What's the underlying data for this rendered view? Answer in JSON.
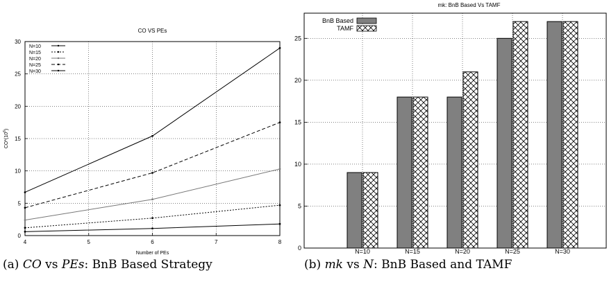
{
  "captions": {
    "a": {
      "tag": "(a)",
      "part1": "CO",
      "mid1": "vs",
      "part2": "PEs",
      "rest": ": BnB Based Strategy"
    },
    "b": {
      "tag": "(b)",
      "part1": "mk",
      "mid1": "vs",
      "part2": "N",
      "rest": ": BnB Based and TAMF"
    }
  },
  "chart_data": [
    {
      "type": "line",
      "title": "CO VS PEs",
      "xlabel": "Number of PEs",
      "ylabel": "CO*(10^6)",
      "ylabel_display": "CO*(10",
      "ylabel_exp": "6",
      "ylabel_close": ")",
      "x": [
        4,
        6,
        8
      ],
      "xlim": [
        4,
        8
      ],
      "ylim": [
        0,
        30
      ],
      "xticks": [
        4,
        5,
        6,
        7,
        8
      ],
      "yticks": [
        0,
        5,
        10,
        15,
        20,
        25,
        30
      ],
      "grid": true,
      "legend_position": "top-left",
      "series": [
        {
          "name": "N=10",
          "values": [
            0.6,
            1.1,
            1.8
          ],
          "color": "#000000",
          "dash": ""
        },
        {
          "name": "N=15",
          "values": [
            1.2,
            2.7,
            4.7
          ],
          "color": "#000000",
          "dash": "2,2"
        },
        {
          "name": "N=20",
          "values": [
            2.4,
            5.6,
            10.3
          ],
          "color": "#777777",
          "dash": ""
        },
        {
          "name": "N=25",
          "values": [
            4.3,
            9.7,
            17.5
          ],
          "color": "#000000",
          "dash": "5,3"
        },
        {
          "name": "N=30",
          "values": [
            6.7,
            15.4,
            29.0
          ],
          "color": "#000000",
          "dash": ""
        }
      ]
    },
    {
      "type": "bar",
      "title": "mk: BnB Based Vs TAMF",
      "categories": [
        "N=10",
        "N=15",
        "N=20",
        "N=25",
        "N=30"
      ],
      "ylim": [
        0,
        28
      ],
      "yticks": [
        0,
        5,
        10,
        15,
        20,
        25
      ],
      "grid": true,
      "legend_position": "top-left",
      "series": [
        {
          "name": "BnB Based",
          "values": [
            9,
            18,
            18,
            25,
            27
          ],
          "color": "#808080",
          "pattern": "solid"
        },
        {
          "name": "TAMF",
          "values": [
            9,
            18,
            21,
            27,
            27
          ],
          "color": "#ffffff",
          "pattern": "crosshatch"
        }
      ]
    }
  ]
}
